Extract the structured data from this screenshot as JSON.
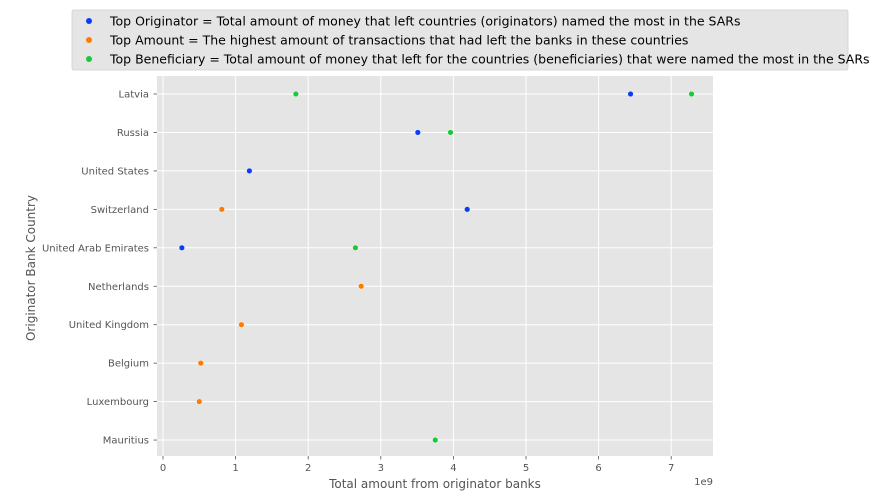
{
  "chart_data": {
    "type": "scatter",
    "xlabel": "Total amount from originator banks",
    "ylabel": "Originator Bank Country",
    "x_offset_label": "1e9",
    "xlim": [
      -0.1,
      7.6
    ],
    "x_ticks": [
      0,
      1,
      2,
      3,
      4,
      5,
      6,
      7
    ],
    "grid": true,
    "legend_position": "top",
    "categories": [
      "Latvia",
      "Russia",
      "United States",
      "Switzerland",
      "United Arab Emirates",
      "Netherlands",
      "United Kingdom",
      "Belgium",
      "Luxembourg",
      "Mauritius"
    ],
    "series": [
      {
        "name": "Top Originator = Total amount of money that left countries (originators) named the most in the SARs",
        "color": "#0a3df5",
        "points": [
          {
            "category": "Latvia",
            "x": 6.44
          },
          {
            "category": "Russia",
            "x": 3.51
          },
          {
            "category": "United States",
            "x": 1.19
          },
          {
            "category": "Switzerland",
            "x": 4.19
          },
          {
            "category": "United Arab Emirates",
            "x": 0.26
          }
        ]
      },
      {
        "name": "Top Amount = The highest amount of transactions that had left the banks in these countries",
        "color": "#ff7b00",
        "points": [
          {
            "category": "Switzerland",
            "x": 0.81
          },
          {
            "category": "Netherlands",
            "x": 2.73
          },
          {
            "category": "United Kingdom",
            "x": 1.08
          },
          {
            "category": "Belgium",
            "x": 0.52
          },
          {
            "category": "Luxembourg",
            "x": 0.5
          }
        ]
      },
      {
        "name": "Top Beneficiary = Total amount of money that left for the countries (beneficiaries) that were named the most in the SARs",
        "color": "#1ac938",
        "points": [
          {
            "category": "Latvia",
            "x": 1.83
          },
          {
            "category": "Latvia",
            "x": 7.28
          },
          {
            "category": "Russia",
            "x": 3.96
          },
          {
            "category": "United Arab Emirates",
            "x": 2.65
          },
          {
            "category": "Mauritius",
            "x": 3.75
          }
        ]
      }
    ]
  }
}
